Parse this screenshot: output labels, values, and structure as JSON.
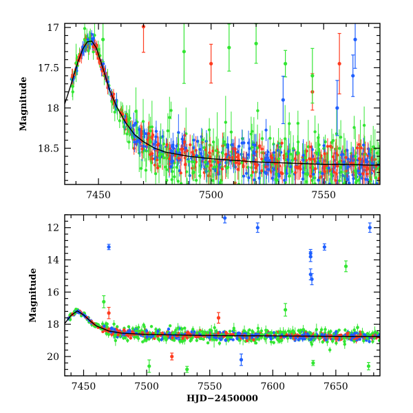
{
  "chart_data": [
    {
      "type": "scatter",
      "title": "",
      "xlabel": "",
      "ylabel": "Magnitude",
      "xlim": [
        7435,
        7575
      ],
      "ylim": [
        18.95,
        16.95
      ],
      "y_inverted": true,
      "xticks": [
        7450,
        7500,
        7550
      ],
      "yticks": [
        17,
        17.5,
        18,
        18.5
      ],
      "grid": false,
      "legend": "none",
      "colors": {
        "green": "#33e633",
        "red": "#ff3b1f",
        "blue": "#1f5fff",
        "model": "#000000"
      },
      "model_curve": {
        "x": [
          7435,
          7437,
          7439,
          7441,
          7443,
          7445,
          7447,
          7449,
          7451,
          7453,
          7455,
          7458,
          7462,
          7466,
          7470,
          7475,
          7480,
          7490,
          7500,
          7510,
          7520,
          7530,
          7540,
          7550,
          7560,
          7570,
          7575
        ],
        "y": [
          17.95,
          17.78,
          17.6,
          17.42,
          17.27,
          17.18,
          17.17,
          17.25,
          17.42,
          17.6,
          17.78,
          17.98,
          18.18,
          18.33,
          18.42,
          18.5,
          18.55,
          18.6,
          18.63,
          18.65,
          18.67,
          18.68,
          18.69,
          18.7,
          18.7,
          18.71,
          18.71
        ]
      },
      "outliers": [
        {
          "band": "red",
          "x": 7470,
          "y": 16.99
        },
        {
          "band": "green",
          "x": 7452,
          "y": 17.15
        },
        {
          "band": "green",
          "x": 7488,
          "y": 17.3
        },
        {
          "band": "green",
          "x": 7508,
          "y": 17.25
        },
        {
          "band": "green",
          "x": 7533,
          "y": 17.45
        },
        {
          "band": "green",
          "x": 7520,
          "y": 17.2
        },
        {
          "band": "red",
          "x": 7500,
          "y": 17.45
        },
        {
          "band": "red",
          "x": 7557,
          "y": 17.45
        },
        {
          "band": "red",
          "x": 7545,
          "y": 17.8
        },
        {
          "band": "blue",
          "x": 7532,
          "y": 17.9
        },
        {
          "band": "blue",
          "x": 7556,
          "y": 18.0
        },
        {
          "band": "blue",
          "x": 7564,
          "y": 17.15
        },
        {
          "band": "blue",
          "x": 7563,
          "y": 17.6
        },
        {
          "band": "green",
          "x": 7545,
          "y": 17.6
        }
      ]
    },
    {
      "type": "scatter",
      "title": "",
      "xlabel": "HJD−2450000",
      "ylabel": "Magnitude",
      "xlim": [
        7435,
        7685
      ],
      "ylim": [
        21.2,
        11.2
      ],
      "y_inverted": true,
      "xticks": [
        7450,
        7500,
        7550,
        7600,
        7650
      ],
      "yticks": [
        12,
        14,
        16,
        18,
        20
      ],
      "grid": false,
      "legend": "none",
      "colors": {
        "green": "#33e633",
        "red": "#ff3b1f",
        "blue": "#1f5fff",
        "model": "#000000"
      },
      "model_curve": {
        "x": [
          7435,
          7440,
          7445,
          7450,
          7455,
          7460,
          7470,
          7480,
          7500,
          7550,
          7600,
          7650,
          7685
        ],
        "y": [
          17.95,
          17.45,
          17.17,
          17.42,
          17.78,
          18.1,
          18.42,
          18.55,
          18.63,
          18.7,
          18.72,
          18.75,
          18.76
        ]
      },
      "outliers": [
        {
          "band": "blue",
          "x": 7562,
          "y": 11.4
        },
        {
          "band": "blue",
          "x": 7588,
          "y": 12.0
        },
        {
          "band": "blue",
          "x": 7677,
          "y": 12.0
        },
        {
          "band": "blue",
          "x": 7470,
          "y": 13.2
        },
        {
          "band": "blue",
          "x": 7641,
          "y": 13.2
        },
        {
          "band": "blue",
          "x": 7630,
          "y": 13.6
        },
        {
          "band": "blue",
          "x": 7630,
          "y": 13.8
        },
        {
          "band": "blue",
          "x": 7630,
          "y": 14.9
        },
        {
          "band": "blue",
          "x": 7631,
          "y": 15.2
        },
        {
          "band": "green",
          "x": 7658,
          "y": 14.4
        },
        {
          "band": "green",
          "x": 7676,
          "y": 20.6
        },
        {
          "band": "green",
          "x": 7632,
          "y": 20.4
        },
        {
          "band": "green",
          "x": 7502,
          "y": 20.6
        },
        {
          "band": "green",
          "x": 7532,
          "y": 20.8
        },
        {
          "band": "red",
          "x": 7470,
          "y": 17.3
        },
        {
          "band": "red",
          "x": 7520,
          "y": 20.0
        },
        {
          "band": "red",
          "x": 7557,
          "y": 17.6
        },
        {
          "band": "blue",
          "x": 7575,
          "y": 20.2
        },
        {
          "band": "green",
          "x": 7466,
          "y": 16.6
        },
        {
          "band": "green",
          "x": 7610,
          "y": 17.1
        }
      ]
    }
  ]
}
